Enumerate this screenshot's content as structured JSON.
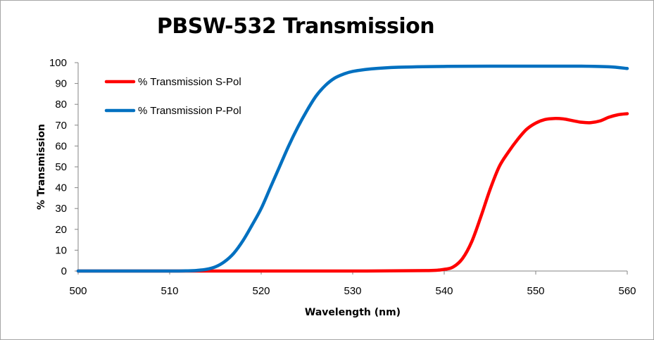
{
  "chart_data": {
    "type": "line",
    "title": "PBSW-532 Transmission",
    "xlabel": "Wavelength (nm)",
    "ylabel": "% Transmission",
    "xlim": [
      500,
      560
    ],
    "ylim": [
      0,
      100
    ],
    "x_ticks": [
      500,
      510,
      520,
      530,
      540,
      550,
      560
    ],
    "y_ticks": [
      0,
      10,
      20,
      30,
      40,
      50,
      60,
      70,
      80,
      90,
      100
    ],
    "grid": false,
    "legend_position": "top-left",
    "series": [
      {
        "name": "% Transmission S-Pol",
        "color": "#ff0000",
        "x": [
          500,
          510,
          520,
          530,
          538,
          540,
          541,
          542,
          543,
          544,
          545,
          546,
          547,
          548,
          549,
          550,
          551,
          552,
          553,
          554,
          555,
          556,
          557,
          558,
          559,
          560
        ],
        "y": [
          0,
          0,
          0,
          0,
          0.2,
          0.8,
          2,
          6,
          14,
          26,
          39,
          50,
          57,
          63,
          68,
          71,
          72.7,
          73.2,
          73,
          72.2,
          71.4,
          71.2,
          72,
          73.8,
          75,
          75.5
        ]
      },
      {
        "name": "% Transmission P-Pol",
        "color": "#0070c0",
        "x": [
          500,
          510,
          512,
          513,
          514,
          515,
          516,
          517,
          518,
          519,
          520,
          521,
          522,
          523,
          524,
          525,
          526,
          527,
          528,
          529,
          530,
          532,
          535,
          540,
          545,
          550,
          555,
          558,
          560
        ],
        "y": [
          0,
          0,
          0.1,
          0.3,
          0.8,
          2,
          4.5,
          8.5,
          14.5,
          22,
          30,
          40,
          50,
          60,
          69,
          77,
          84,
          89,
          92.5,
          94.5,
          95.8,
          97,
          97.8,
          98.2,
          98.3,
          98.3,
          98.3,
          98,
          97.2
        ]
      }
    ]
  }
}
